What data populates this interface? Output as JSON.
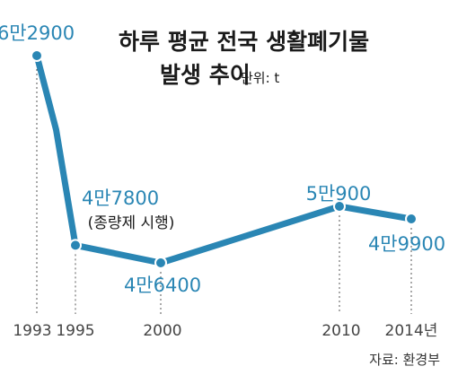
{
  "chart_data": {
    "type": "line",
    "title_line1": "하루 평균 전국 생활폐기물",
    "title_line2": "발생 추이",
    "unit_label": "단위: t",
    "x_tick_labels": [
      "1993",
      "1995",
      "2000",
      "2010",
      "2014년"
    ],
    "x": [
      1993,
      1994,
      1995,
      2000,
      2010,
      2014
    ],
    "values": [
      62900,
      57000,
      47800,
      46400,
      50900,
      49900
    ],
    "data_labels": [
      {
        "x": 1993,
        "text": "6만2900"
      },
      {
        "x": 1995,
        "text": "4만7800"
      },
      {
        "x": 2000,
        "text": "4만6400"
      },
      {
        "x": 2010,
        "text": "5만900"
      },
      {
        "x": 2014,
        "text": "4만9900"
      }
    ],
    "annotation": "(종량제 시행)",
    "source": "자료: 환경부",
    "line_color": "#2a86b4",
    "marker_fill": "#2a86b4"
  }
}
